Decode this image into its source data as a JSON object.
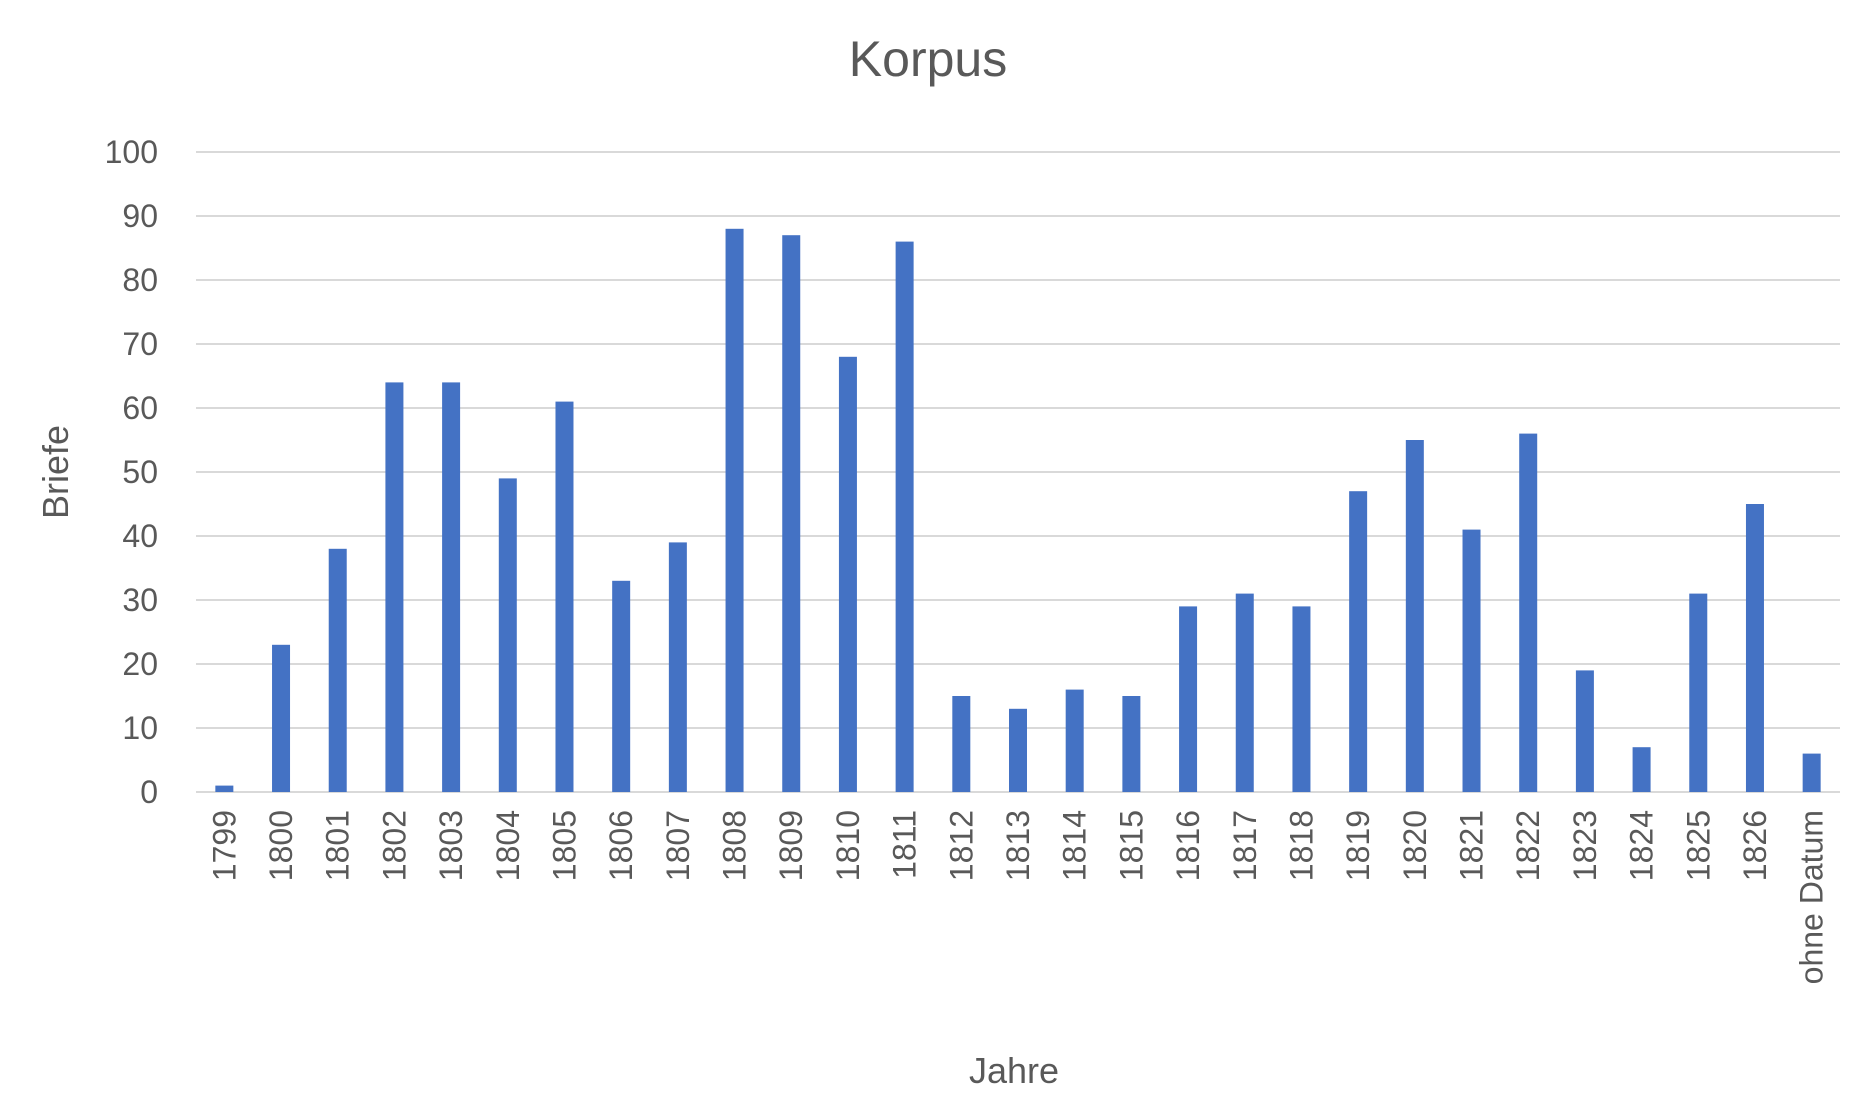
{
  "chart_data": {
    "type": "bar",
    "title": "Korpus",
    "xlabel": "Jahre",
    "ylabel": "Briefe",
    "ylim": [
      0,
      100
    ],
    "yticks": [
      "0",
      "10",
      "20",
      "30",
      "40",
      "50",
      "60",
      "70",
      "80",
      "90",
      "100"
    ],
    "grid": true,
    "legend": "none",
    "bar_color": "#4472c4",
    "categories": [
      "1799",
      "1800",
      "1801",
      "1802",
      "1803",
      "1804",
      "1805",
      "1806",
      "1807",
      "1808",
      "1809",
      "1810",
      "1811",
      "1812",
      "1813",
      "1814",
      "1815",
      "1816",
      "1817",
      "1818",
      "1819",
      "1820",
      "1821",
      "1822",
      "1823",
      "1824",
      "1825",
      "1826",
      "ohne Datum"
    ],
    "values": [
      1,
      23,
      38,
      64,
      64,
      49,
      61,
      33,
      39,
      88,
      87,
      68,
      86,
      15,
      13,
      16,
      15,
      29,
      31,
      29,
      47,
      55,
      41,
      56,
      19,
      7,
      31,
      45,
      6
    ]
  }
}
